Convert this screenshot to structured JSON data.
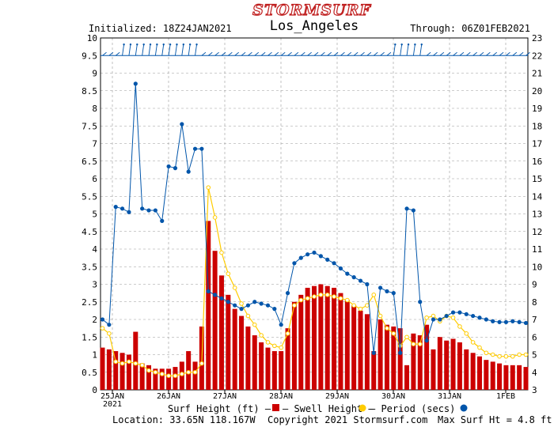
{
  "header": {
    "logo": "STORMSURF",
    "initialized": "Initialized: 18Z24JAN2021",
    "station": "Los_Angeles",
    "through": "Through: 06Z01FEB2021"
  },
  "footer": {
    "legend_surf": "Surf Height (ft) –",
    "legend_swell": "–  Swell Height –",
    "legend_period": "–  Period (secs) –",
    "location": "Location: 33.65N 118.167W",
    "copyright": "Copyright 2021 Stormsurf.com",
    "max_surf": "Max Surf Ht = 4.8 ft"
  },
  "colors": {
    "surf": "#cc0000",
    "swell": "#ffcc00",
    "period": "#0055aa",
    "logo": "#c02020",
    "grid": "#999999"
  },
  "chart_data": {
    "type": "bar",
    "title": "Los_Angeles",
    "xlabel": "",
    "ylabel": "",
    "ylim": [
      0,
      10
    ],
    "y2lim": [
      3,
      23
    ],
    "yticks": [
      "0",
      "0.5",
      "1",
      "1.5",
      "2",
      "2.5",
      "3",
      "3.5",
      "4",
      "4.5",
      "5",
      "5.5",
      "6",
      "6.5",
      "7",
      "7.5",
      "8",
      "8.5",
      "9",
      "9.5",
      "10"
    ],
    "y2ticks": [
      "3",
      "4",
      "5",
      "6",
      "7",
      "8",
      "9",
      "10",
      "11",
      "12",
      "13",
      "14",
      "15",
      "16",
      "17",
      "18",
      "19",
      "20",
      "21",
      "22",
      "23"
    ],
    "days": [
      "25JAN",
      "26JAN",
      "27JAN",
      "28JAN",
      "29JAN",
      "30JAN",
      "31JAN",
      "1FEB"
    ],
    "year_label": "2021",
    "grid": true,
    "series": [
      {
        "name": "Surf Height (ft)",
        "kind": "bar",
        "values": [
          1.2,
          1.15,
          1.1,
          1.05,
          1.0,
          1.65,
          0.75,
          0.7,
          0.6,
          0.6,
          0.6,
          0.65,
          0.8,
          1.1,
          0.8,
          1.8,
          4.8,
          3.95,
          3.25,
          2.7,
          2.3,
          2.1,
          1.8,
          1.55,
          1.35,
          1.2,
          1.1,
          1.1,
          1.75,
          2.5,
          2.7,
          2.9,
          2.95,
          3.0,
          2.95,
          2.9,
          2.75,
          2.55,
          2.4,
          2.25,
          2.15,
          1.1,
          2.0,
          1.85,
          1.8,
          1.75,
          0.7,
          1.6,
          1.55,
          1.85,
          1.15,
          1.5,
          1.4,
          1.45,
          1.35,
          1.15,
          1.05,
          0.95,
          0.85,
          0.8,
          0.75,
          0.7,
          0.7,
          0.7,
          0.65
        ]
      },
      {
        "name": "Swell Height (ft)",
        "kind": "line",
        "values": [
          1.75,
          1.6,
          0.8,
          0.75,
          0.8,
          0.75,
          0.7,
          0.55,
          0.5,
          0.45,
          0.4,
          0.4,
          0.45,
          0.5,
          0.5,
          0.75,
          5.75,
          4.9,
          3.9,
          3.3,
          2.9,
          2.45,
          2.1,
          1.85,
          1.55,
          1.35,
          1.25,
          1.2,
          1.6,
          2.4,
          2.55,
          2.6,
          2.65,
          2.7,
          2.7,
          2.65,
          2.6,
          2.55,
          2.4,
          2.3,
          2.4,
          2.7,
          2.1,
          1.75,
          1.6,
          1.25,
          1.5,
          1.3,
          1.3,
          2.05,
          2.1,
          1.95,
          2.1,
          2.05,
          1.8,
          1.6,
          1.35,
          1.2,
          1.05,
          1.0,
          0.95,
          0.95,
          0.95,
          1.0,
          1.0
        ]
      },
      {
        "name": "Period (secs)",
        "kind": "line",
        "axis": "right",
        "values": [
          7.0,
          6.7,
          13.4,
          13.3,
          13.1,
          20.4,
          13.3,
          13.2,
          13.2,
          12.6,
          15.7,
          15.6,
          18.1,
          15.4,
          16.7,
          16.7,
          8.6,
          8.4,
          8.2,
          8.0,
          7.8,
          7.6,
          7.8,
          8.0,
          7.9,
          7.8,
          7.6,
          6.7,
          8.5,
          10.2,
          10.5,
          10.7,
          10.8,
          10.6,
          10.4,
          10.2,
          9.9,
          9.6,
          9.4,
          9.2,
          9.0,
          5.1,
          8.8,
          8.6,
          8.5,
          5.1,
          13.3,
          13.2,
          8.0,
          5.8,
          7.0,
          7.0,
          7.2,
          7.4,
          7.4,
          7.3,
          7.2,
          7.1,
          7.0,
          6.9,
          6.85,
          6.85,
          6.9,
          6.85,
          6.8
        ]
      }
    ]
  }
}
